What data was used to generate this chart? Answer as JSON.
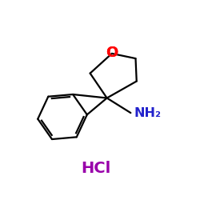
{
  "bg_color": "#ffffff",
  "bond_color": "#000000",
  "o_color": "#ff0000",
  "nh2_color": "#2222cc",
  "hcl_color": "#9900aa",
  "o_label": "O",
  "nh2_label": "NH₂",
  "hcl_label": "HCl",
  "figsize": [
    2.5,
    2.5
  ],
  "dpi": 100,
  "lw": 1.6
}
